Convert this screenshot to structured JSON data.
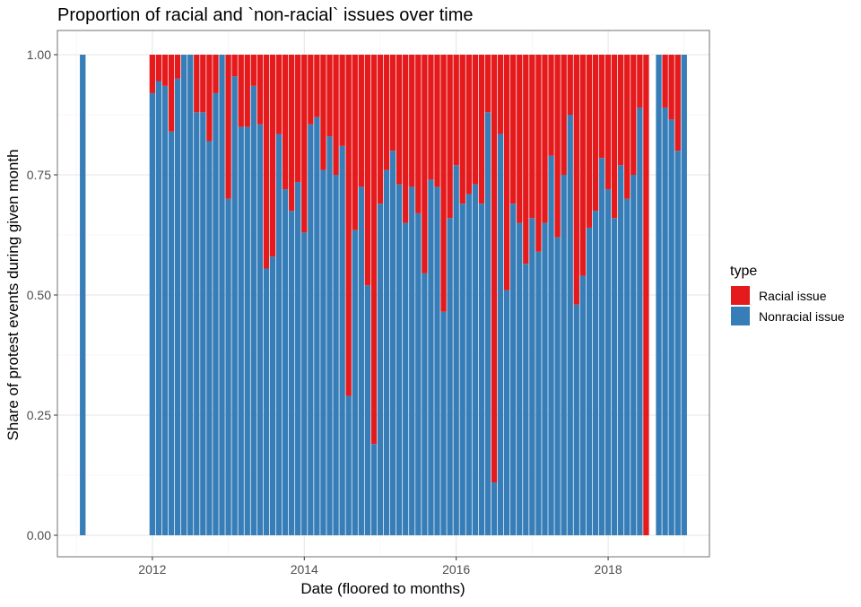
{
  "chart_data": {
    "type": "bar",
    "stacked": true,
    "title": "Proportion of racial and `non-racial` issues over time",
    "xlabel": "Date (floored to months)",
    "ylabel": "Share of protest events during given month",
    "ylim": [
      0,
      1
    ],
    "yticks": [
      "0.00",
      "0.25",
      "0.50",
      "0.75",
      "1.00"
    ],
    "ytick_values": [
      0,
      0.25,
      0.5,
      0.75,
      1
    ],
    "xticks": [
      "2012",
      "2014",
      "2016",
      "2018"
    ],
    "xtick_values": [
      "2012-01",
      "2014-01",
      "2016-01",
      "2018-01"
    ],
    "xlim": [
      "2010-10",
      "2019-05"
    ],
    "grid": true,
    "legend": {
      "title": "type",
      "position": "right",
      "entries": [
        {
          "name": "Racial issue",
          "color": "#e41a1c"
        },
        {
          "name": "Nonracial issue",
          "color": "#377eb8"
        }
      ]
    },
    "series": [
      {
        "name": "Racial issue",
        "color": "#e41a1c"
      },
      {
        "name": "Nonracial issue",
        "color": "#377eb8"
      }
    ],
    "months": [
      "2011-02",
      "2012-01",
      "2012-02",
      "2012-03",
      "2012-04",
      "2012-05",
      "2012-06",
      "2012-07",
      "2012-08",
      "2012-09",
      "2012-10",
      "2012-11",
      "2012-12",
      "2013-01",
      "2013-02",
      "2013-03",
      "2013-04",
      "2013-05",
      "2013-06",
      "2013-07",
      "2013-08",
      "2013-09",
      "2013-10",
      "2013-11",
      "2013-12",
      "2014-01",
      "2014-02",
      "2014-03",
      "2014-04",
      "2014-05",
      "2014-06",
      "2014-07",
      "2014-08",
      "2014-09",
      "2014-10",
      "2014-11",
      "2014-12",
      "2015-01",
      "2015-02",
      "2015-03",
      "2015-04",
      "2015-05",
      "2015-06",
      "2015-07",
      "2015-08",
      "2015-09",
      "2015-10",
      "2015-11",
      "2015-12",
      "2016-01",
      "2016-02",
      "2016-03",
      "2016-04",
      "2016-05",
      "2016-06",
      "2016-07",
      "2016-08",
      "2016-09",
      "2016-10",
      "2016-11",
      "2016-12",
      "2017-01",
      "2017-02",
      "2017-03",
      "2017-04",
      "2017-05",
      "2017-06",
      "2017-07",
      "2017-08",
      "2017-09",
      "2017-10",
      "2017-11",
      "2017-12",
      "2018-01",
      "2018-02",
      "2018-03",
      "2018-04",
      "2018-05",
      "2018-06",
      "2018-07",
      "2018-09",
      "2018-10",
      "2018-11",
      "2018-12",
      "2019-01"
    ],
    "nonracial_share": [
      1.0,
      0.92,
      0.945,
      0.935,
      0.84,
      0.95,
      1.0,
      1.0,
      0.88,
      0.88,
      0.82,
      0.92,
      1.0,
      0.7,
      0.955,
      0.85,
      0.85,
      0.935,
      0.855,
      0.555,
      0.58,
      0.835,
      0.72,
      0.675,
      0.735,
      0.63,
      0.855,
      0.87,
      0.76,
      0.83,
      0.75,
      0.81,
      0.29,
      0.635,
      0.725,
      0.52,
      0.19,
      0.69,
      0.76,
      0.8,
      0.73,
      0.65,
      0.725,
      0.67,
      0.545,
      0.74,
      0.725,
      0.465,
      0.66,
      0.77,
      0.69,
      0.71,
      0.73,
      0.69,
      0.88,
      0.11,
      0.835,
      0.51,
      0.69,
      0.65,
      0.565,
      0.66,
      0.59,
      0.65,
      0.79,
      0.62,
      0.75,
      0.875,
      0.48,
      0.54,
      0.64,
      0.675,
      0.785,
      0.72,
      0.66,
      0.77,
      0.7,
      0.75,
      0.89,
      0.0,
      1.0,
      0.89,
      0.865,
      0.8,
      1.0
    ]
  }
}
